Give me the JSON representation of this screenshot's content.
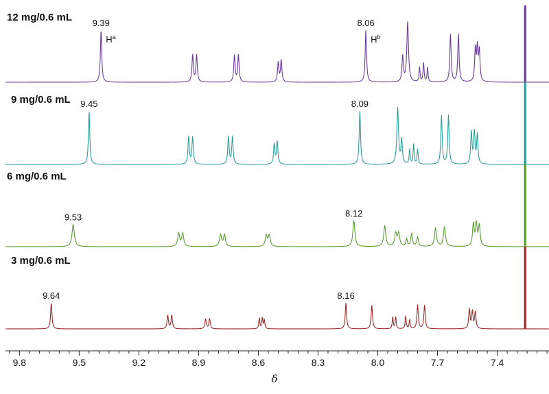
{
  "chart_data": {
    "type": "line",
    "title": "",
    "xlabel": "δ",
    "ylabel": "",
    "xlim": [
      9.87,
      7.14
    ],
    "x_reversed": true,
    "xticks": [
      "9.8",
      "9.5",
      "9.2",
      "8.9",
      "8.6",
      "8.3",
      "8.0",
      "7.7",
      "7.4"
    ],
    "grid": false,
    "series": [
      {
        "name": "12 mg/0.6 mL",
        "color": "#6a3d9a",
        "peaks": [
          {
            "x": 9.39,
            "h": 1.0,
            "w": 0.004,
            "label": "9.39",
            "note": "H",
            "note_sup": "a"
          },
          {
            "x": 8.93,
            "h": 0.52,
            "w": 0.004
          },
          {
            "x": 8.91,
            "h": 0.52,
            "w": 0.004
          },
          {
            "x": 8.72,
            "h": 0.52,
            "w": 0.004
          },
          {
            "x": 8.7,
            "h": 0.52,
            "w": 0.004
          },
          {
            "x": 8.5,
            "h": 0.38,
            "w": 0.004
          },
          {
            "x": 8.485,
            "h": 0.42,
            "w": 0.004
          },
          {
            "x": 8.06,
            "h": 1.0,
            "w": 0.004,
            "label": "8.06",
            "note": "H",
            "note_sup": "b"
          },
          {
            "x": 7.875,
            "h": 0.5,
            "w": 0.004
          },
          {
            "x": 7.85,
            "h": 1.15,
            "w": 0.005
          },
          {
            "x": 7.79,
            "h": 0.28,
            "w": 0.003
          },
          {
            "x": 7.77,
            "h": 0.38,
            "w": 0.003
          },
          {
            "x": 7.75,
            "h": 0.28,
            "w": 0.003
          },
          {
            "x": 7.635,
            "h": 0.92,
            "w": 0.004
          },
          {
            "x": 7.595,
            "h": 0.92,
            "w": 0.004
          },
          {
            "x": 7.51,
            "h": 0.62,
            "w": 0.004
          },
          {
            "x": 7.5,
            "h": 0.62,
            "w": 0.004
          },
          {
            "x": 7.49,
            "h": 0.58,
            "w": 0.004
          }
        ]
      },
      {
        "name": "9 mg/0.6 mL",
        "color": "#2e9e9a",
        "peaks": [
          {
            "x": 9.45,
            "h": 1.0,
            "w": 0.004,
            "label": "9.45"
          },
          {
            "x": 8.95,
            "h": 0.52,
            "w": 0.004
          },
          {
            "x": 8.93,
            "h": 0.52,
            "w": 0.004
          },
          {
            "x": 8.75,
            "h": 0.52,
            "w": 0.004
          },
          {
            "x": 8.73,
            "h": 0.52,
            "w": 0.004
          },
          {
            "x": 8.52,
            "h": 0.38,
            "w": 0.004
          },
          {
            "x": 8.505,
            "h": 0.42,
            "w": 0.004
          },
          {
            "x": 8.09,
            "h": 1.0,
            "w": 0.004,
            "label": "8.09"
          },
          {
            "x": 7.9,
            "h": 1.05,
            "w": 0.005
          },
          {
            "x": 7.88,
            "h": 0.45,
            "w": 0.004
          },
          {
            "x": 7.84,
            "h": 0.28,
            "w": 0.003
          },
          {
            "x": 7.82,
            "h": 0.38,
            "w": 0.003
          },
          {
            "x": 7.8,
            "h": 0.28,
            "w": 0.003
          },
          {
            "x": 7.68,
            "h": 0.92,
            "w": 0.004
          },
          {
            "x": 7.645,
            "h": 0.92,
            "w": 0.004
          },
          {
            "x": 7.53,
            "h": 0.6,
            "w": 0.004
          },
          {
            "x": 7.515,
            "h": 0.6,
            "w": 0.004
          },
          {
            "x": 7.5,
            "h": 0.55,
            "w": 0.004
          }
        ]
      },
      {
        "name": "6 mg/0.6 mL",
        "color": "#5a9e2f",
        "peaks": [
          {
            "x": 9.53,
            "h": 0.85,
            "w": 0.007,
            "label": "9.53"
          },
          {
            "x": 9.0,
            "h": 0.5,
            "w": 0.006
          },
          {
            "x": 8.98,
            "h": 0.5,
            "w": 0.006
          },
          {
            "x": 8.79,
            "h": 0.45,
            "w": 0.006
          },
          {
            "x": 8.77,
            "h": 0.45,
            "w": 0.006
          },
          {
            "x": 8.56,
            "h": 0.42,
            "w": 0.006
          },
          {
            "x": 8.545,
            "h": 0.42,
            "w": 0.006
          },
          {
            "x": 8.12,
            "h": 1.0,
            "w": 0.006,
            "label": "8.12"
          },
          {
            "x": 7.965,
            "h": 0.8,
            "w": 0.006
          },
          {
            "x": 7.91,
            "h": 0.5,
            "w": 0.006
          },
          {
            "x": 7.895,
            "h": 0.5,
            "w": 0.006
          },
          {
            "x": 7.855,
            "h": 0.28,
            "w": 0.004
          },
          {
            "x": 7.83,
            "h": 0.5,
            "w": 0.005
          },
          {
            "x": 7.8,
            "h": 0.35,
            "w": 0.005
          },
          {
            "x": 7.71,
            "h": 0.7,
            "w": 0.006
          },
          {
            "x": 7.665,
            "h": 0.75,
            "w": 0.006
          },
          {
            "x": 7.52,
            "h": 0.85,
            "w": 0.005
          },
          {
            "x": 7.505,
            "h": 0.85,
            "w": 0.005
          },
          {
            "x": 7.49,
            "h": 0.8,
            "w": 0.005
          }
        ]
      },
      {
        "name": "3 mg/0.6 mL",
        "color": "#9e2a2a",
        "peaks": [
          {
            "x": 9.64,
            "h": 1.0,
            "w": 0.004,
            "label": "9.64"
          },
          {
            "x": 9.055,
            "h": 0.52,
            "w": 0.004
          },
          {
            "x": 9.035,
            "h": 0.52,
            "w": 0.004
          },
          {
            "x": 8.865,
            "h": 0.38,
            "w": 0.004
          },
          {
            "x": 8.845,
            "h": 0.38,
            "w": 0.004
          },
          {
            "x": 8.595,
            "h": 0.42,
            "w": 0.003
          },
          {
            "x": 8.58,
            "h": 0.42,
            "w": 0.003
          },
          {
            "x": 8.57,
            "h": 0.35,
            "w": 0.003
          },
          {
            "x": 8.16,
            "h": 1.0,
            "w": 0.004,
            "label": "8.16"
          },
          {
            "x": 8.03,
            "h": 0.92,
            "w": 0.004
          },
          {
            "x": 7.925,
            "h": 0.45,
            "w": 0.003
          },
          {
            "x": 7.91,
            "h": 0.45,
            "w": 0.003
          },
          {
            "x": 7.86,
            "h": 0.5,
            "w": 0.003
          },
          {
            "x": 7.84,
            "h": 0.35,
            "w": 0.003
          },
          {
            "x": 7.8,
            "h": 0.92,
            "w": 0.004
          },
          {
            "x": 7.765,
            "h": 0.92,
            "w": 0.004
          },
          {
            "x": 7.54,
            "h": 0.75,
            "w": 0.004
          },
          {
            "x": 7.525,
            "h": 0.65,
            "w": 0.004
          },
          {
            "x": 7.51,
            "h": 0.65,
            "w": 0.004
          }
        ]
      }
    ],
    "solvent_peak": {
      "x": 7.26,
      "colors": [
        "#6a3d9a",
        "#2e9e9a",
        "#5a9e2f",
        "#9e2a2a"
      ]
    }
  }
}
